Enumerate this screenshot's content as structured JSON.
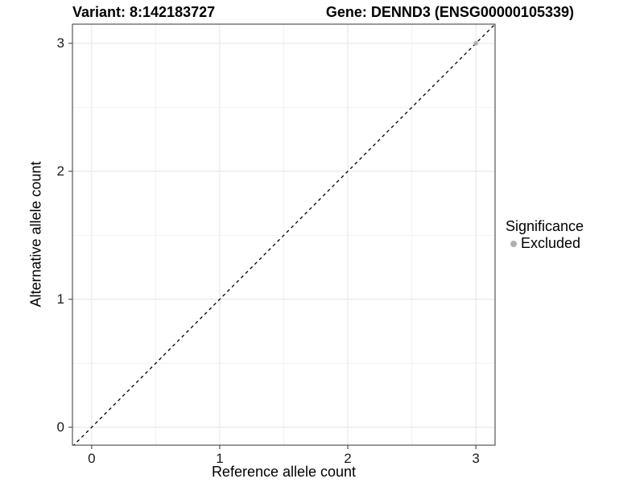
{
  "header": {
    "title_left": "Variant: 8:142183727",
    "title_right": "Gene: DENND3 (ENSG00000105339)"
  },
  "chart_data": {
    "type": "scatter",
    "xlabel": "Reference allele count",
    "ylabel": "Alternative allele count",
    "xlim": [
      -0.15,
      3.15
    ],
    "ylim": [
      -0.14,
      3.15
    ],
    "xticks": [
      0,
      1,
      2,
      3
    ],
    "yticks": [
      0,
      1,
      2,
      3
    ],
    "x_minor_gridlines": [
      0.5,
      1.5,
      2.5
    ],
    "y_minor_gridlines": [
      0.5,
      1.5,
      2.5
    ],
    "grid": true,
    "identity_line": {
      "slope": 1,
      "intercept": 0,
      "style": "dashed",
      "color": "#000000"
    },
    "series": [
      {
        "name": "Excluded",
        "color": "#b0b0b0",
        "points": [
          {
            "x": 3,
            "y": 3
          }
        ]
      }
    ],
    "legend": {
      "title": "Significance",
      "position": "right",
      "entries": [
        {
          "label": "Excluded",
          "color": "#b0b0b0",
          "marker": "circle"
        }
      ]
    }
  },
  "colors": {
    "background": "#ffffff",
    "panel_background": "#ffffff",
    "major_gridline": "#e4e4e4",
    "minor_gridline": "#f2f2f2",
    "panel_border": "#333333",
    "tick_mark": "#333333",
    "tick_text": "#1a1a1a",
    "title_text": "#000000"
  }
}
